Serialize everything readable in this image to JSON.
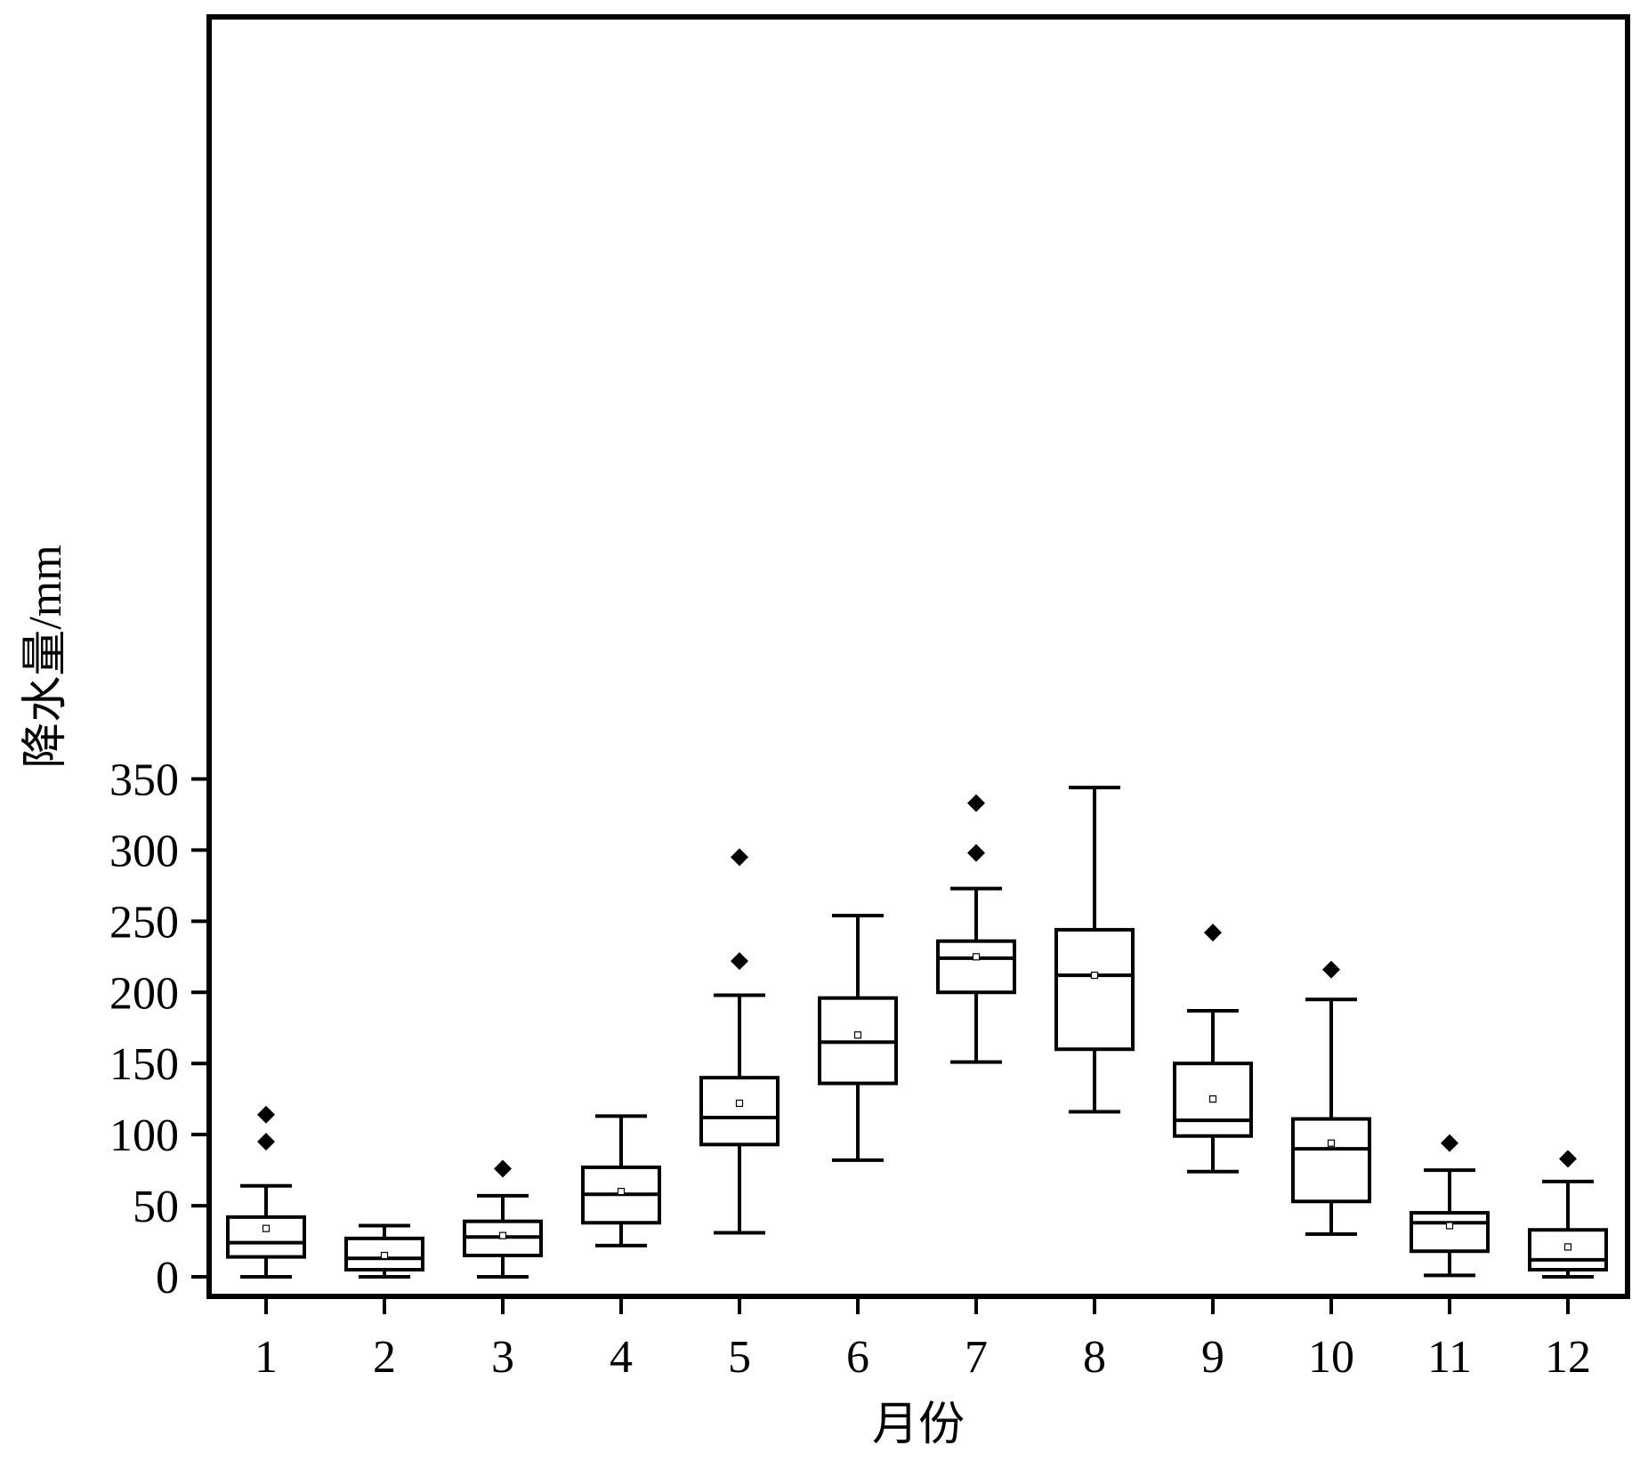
{
  "chart_data": {
    "type": "box",
    "xlabel": "月份",
    "ylabel": "降水量/mm",
    "categories": [
      "1",
      "2",
      "3",
      "4",
      "5",
      "6",
      "7",
      "8",
      "9",
      "10",
      "11",
      "12"
    ],
    "ylim": [
      -8,
      375
    ],
    "yticks": [
      0,
      50,
      100,
      150,
      200,
      250,
      300,
      350
    ],
    "ytick_labels": [
      "0",
      "50",
      "100",
      "150",
      "200",
      "250",
      "300",
      "350"
    ],
    "grid": false,
    "legend": "none",
    "boxes": [
      {
        "month": "1",
        "whisker_low": 0,
        "q1": 14,
        "median": 24,
        "q3": 42,
        "whisker_high": 64,
        "mean": 34,
        "outliers": [
          95,
          114
        ]
      },
      {
        "month": "2",
        "whisker_low": 0,
        "q1": 5,
        "median": 13,
        "q3": 27,
        "whisker_high": 36,
        "mean": 15,
        "outliers": []
      },
      {
        "month": "3",
        "whisker_low": 0,
        "q1": 15,
        "median": 28,
        "q3": 39,
        "whisker_high": 57,
        "mean": 29,
        "outliers": [
          76
        ]
      },
      {
        "month": "4",
        "whisker_low": 22,
        "q1": 38,
        "median": 58,
        "q3": 77,
        "whisker_high": 113,
        "mean": 60,
        "outliers": []
      },
      {
        "month": "5",
        "whisker_low": 31,
        "q1": 93,
        "median": 112,
        "q3": 140,
        "whisker_high": 198,
        "mean": 122,
        "outliers": [
          222,
          295
        ]
      },
      {
        "month": "6",
        "whisker_low": 82,
        "q1": 136,
        "median": 165,
        "q3": 196,
        "whisker_high": 254,
        "mean": 170,
        "outliers": []
      },
      {
        "month": "7",
        "whisker_low": 151,
        "q1": 200,
        "median": 224,
        "q3": 236,
        "whisker_high": 273,
        "mean": 225,
        "outliers": [
          298,
          333
        ]
      },
      {
        "month": "8",
        "whisker_low": 116,
        "q1": 160,
        "median": 212,
        "q3": 244,
        "whisker_high": 344,
        "mean": 212,
        "outliers": []
      },
      {
        "month": "9",
        "whisker_low": 74,
        "q1": 99,
        "median": 110,
        "q3": 150,
        "whisker_high": 187,
        "mean": 125,
        "outliers": [
          242
        ]
      },
      {
        "month": "10",
        "whisker_low": 30,
        "q1": 53,
        "median": 90,
        "q3": 111,
        "whisker_high": 195,
        "mean": 94,
        "outliers": [
          216
        ]
      },
      {
        "month": "11",
        "whisker_low": 1,
        "q1": 18,
        "median": 38,
        "q3": 45,
        "whisker_high": 75,
        "mean": 36,
        "outliers": [
          94
        ]
      },
      {
        "month": "12",
        "whisker_low": 0,
        "q1": 5,
        "median": 12,
        "q3": 33,
        "whisker_high": 67,
        "mean": 21,
        "outliers": [
          83
        ]
      }
    ]
  }
}
